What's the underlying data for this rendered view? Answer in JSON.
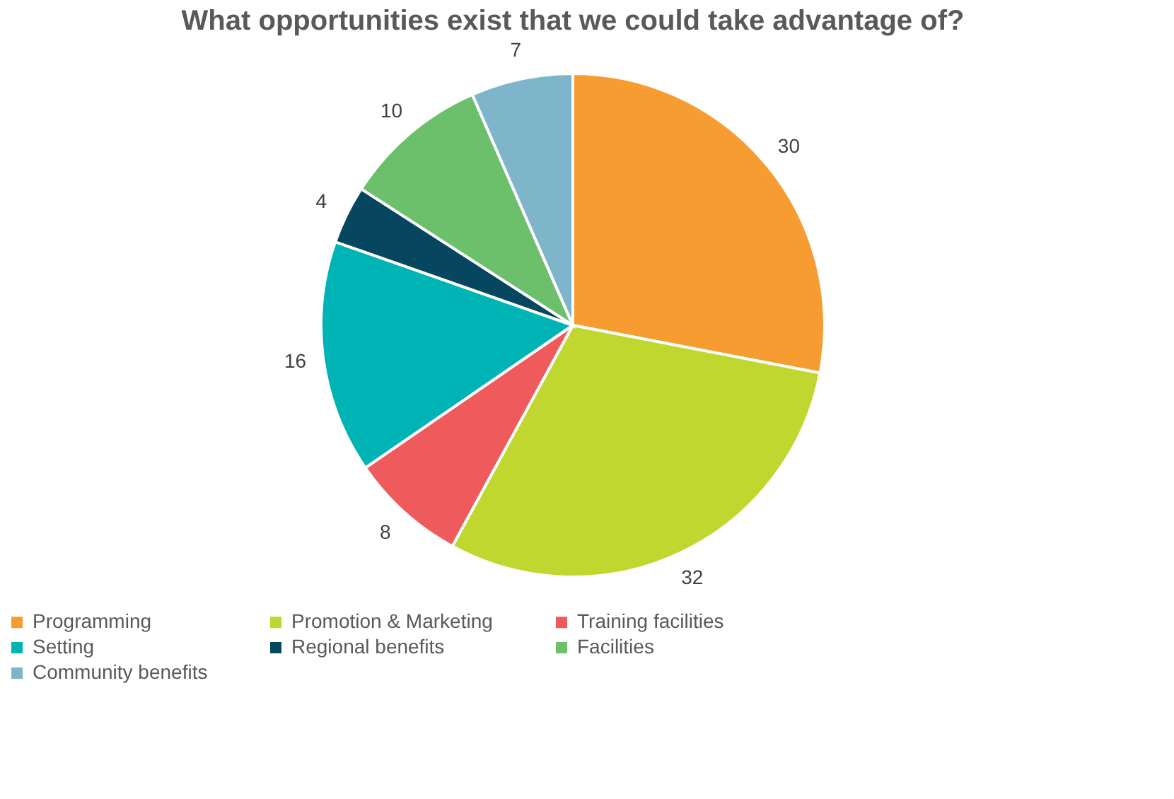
{
  "chart_data": {
    "type": "pie",
    "title": "What opportunities exist that we could take advantage of?",
    "categories": [
      "Programming",
      "Promotion & Marketing",
      "Training facilities",
      "Setting",
      "Regional benefits",
      "Facilities",
      "Community benefits"
    ],
    "values": [
      30,
      32,
      8,
      16,
      4,
      10,
      7
    ],
    "colors": [
      "#f79c31",
      "#c0d72f",
      "#ef5a5c",
      "#00b3b5",
      "#06465e",
      "#6cc06b",
      "#7fb5cb"
    ],
    "data_labels": true,
    "legend": "bottom"
  }
}
